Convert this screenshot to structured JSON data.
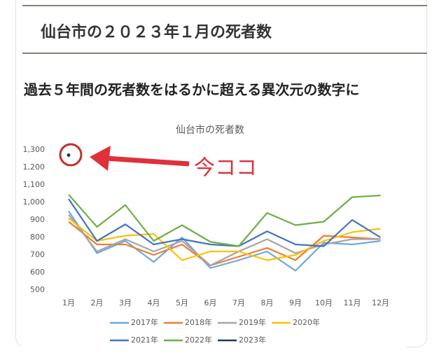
{
  "header": {
    "title": "仙台市の２０２３年１月の死者数",
    "subtitle": "過去５年間の死者数をはるかに超える異次元の数字に"
  },
  "chart_data": {
    "type": "line",
    "title": "仙台市の死者数",
    "annotation": "今ココ",
    "categories": [
      "1月",
      "2月",
      "3月",
      "4月",
      "5月",
      "6月",
      "7月",
      "8月",
      "9月",
      "10月",
      "11月",
      "12月"
    ],
    "ylim": [
      500,
      1300
    ],
    "yticks": [
      500,
      600,
      700,
      800,
      900,
      {
        "value": 1000,
        "label": "1,000"
      },
      {
        "value": 1100,
        "label": "1,100"
      },
      {
        "value": 1200,
        "label": "1,200"
      },
      {
        "value": 1300,
        "label": "1,300"
      }
    ],
    "series": [
      {
        "name": "2017年",
        "color": "#6fa8dc",
        "values": [
          950,
          710,
          780,
          660,
          800,
          625,
          670,
          720,
          610,
          770,
          760,
          780
        ]
      },
      {
        "name": "2018年",
        "color": "#ed7d31",
        "values": [
          890,
          760,
          760,
          700,
          760,
          640,
          690,
          740,
          670,
          810,
          800,
          790
        ]
      },
      {
        "name": "2019年",
        "color": "#a5a5a5",
        "values": [
          930,
          720,
          790,
          720,
          780,
          640,
          720,
          790,
          710,
          760,
          790,
          790
        ]
      },
      {
        "name": "2020年",
        "color": "#ffc000",
        "values": [
          910,
          780,
          810,
          820,
          670,
          720,
          720,
          670,
          700,
          780,
          830,
          850
        ]
      },
      {
        "name": "2021年",
        "color": "#4472c4",
        "values": [
          1020,
          780,
          875,
          760,
          790,
          760,
          750,
          835,
          760,
          750,
          900,
          800
        ]
      },
      {
        "name": "2022年",
        "color": "#70ad47",
        "values": [
          1045,
          860,
          985,
          780,
          870,
          775,
          750,
          940,
          870,
          890,
          1030,
          1040
        ]
      },
      {
        "name": "2023年",
        "color": "#203864",
        "values": [
          1270,
          null,
          null,
          null,
          null,
          null,
          null,
          null,
          null,
          null,
          null,
          null
        ]
      }
    ]
  }
}
